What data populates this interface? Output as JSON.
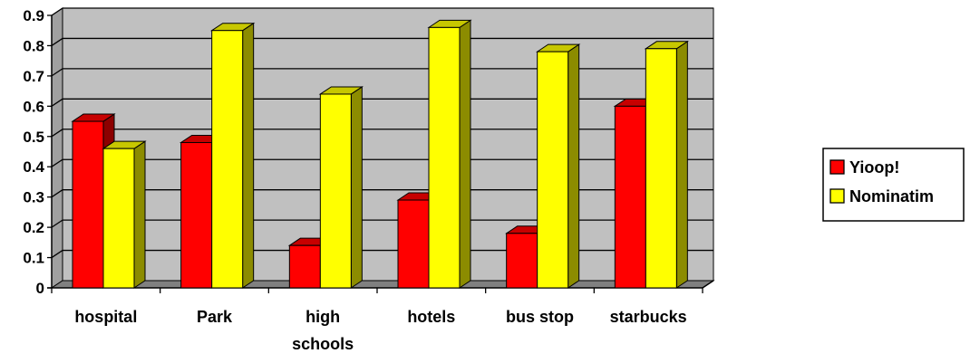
{
  "chart_data": {
    "type": "bar",
    "style": "3d-clustered-column",
    "title": "",
    "xlabel": "",
    "ylabel": "",
    "ylim": [
      0,
      0.9
    ],
    "y_ticks": [
      "0",
      "0.1",
      "0.2",
      "0.3",
      "0.4",
      "0.5",
      "0.6",
      "0.7",
      "0.8",
      "0.9"
    ],
    "grid": true,
    "legend_position": "right",
    "categories": [
      "hospital",
      "Park",
      "high schools",
      "hotels",
      "bus stop",
      "starbucks"
    ],
    "series": [
      {
        "name": "Yioop!",
        "color": "#ff0000",
        "values": [
          0.55,
          0.48,
          0.14,
          0.29,
          0.18,
          0.6
        ]
      },
      {
        "name": "Nominatim",
        "color": "#ffff00",
        "values": [
          0.46,
          0.85,
          0.64,
          0.86,
          0.78,
          0.79
        ]
      }
    ],
    "colors": {
      "wall": "#c0c0c0",
      "floor": "#808080",
      "gridline": "#000000"
    }
  }
}
